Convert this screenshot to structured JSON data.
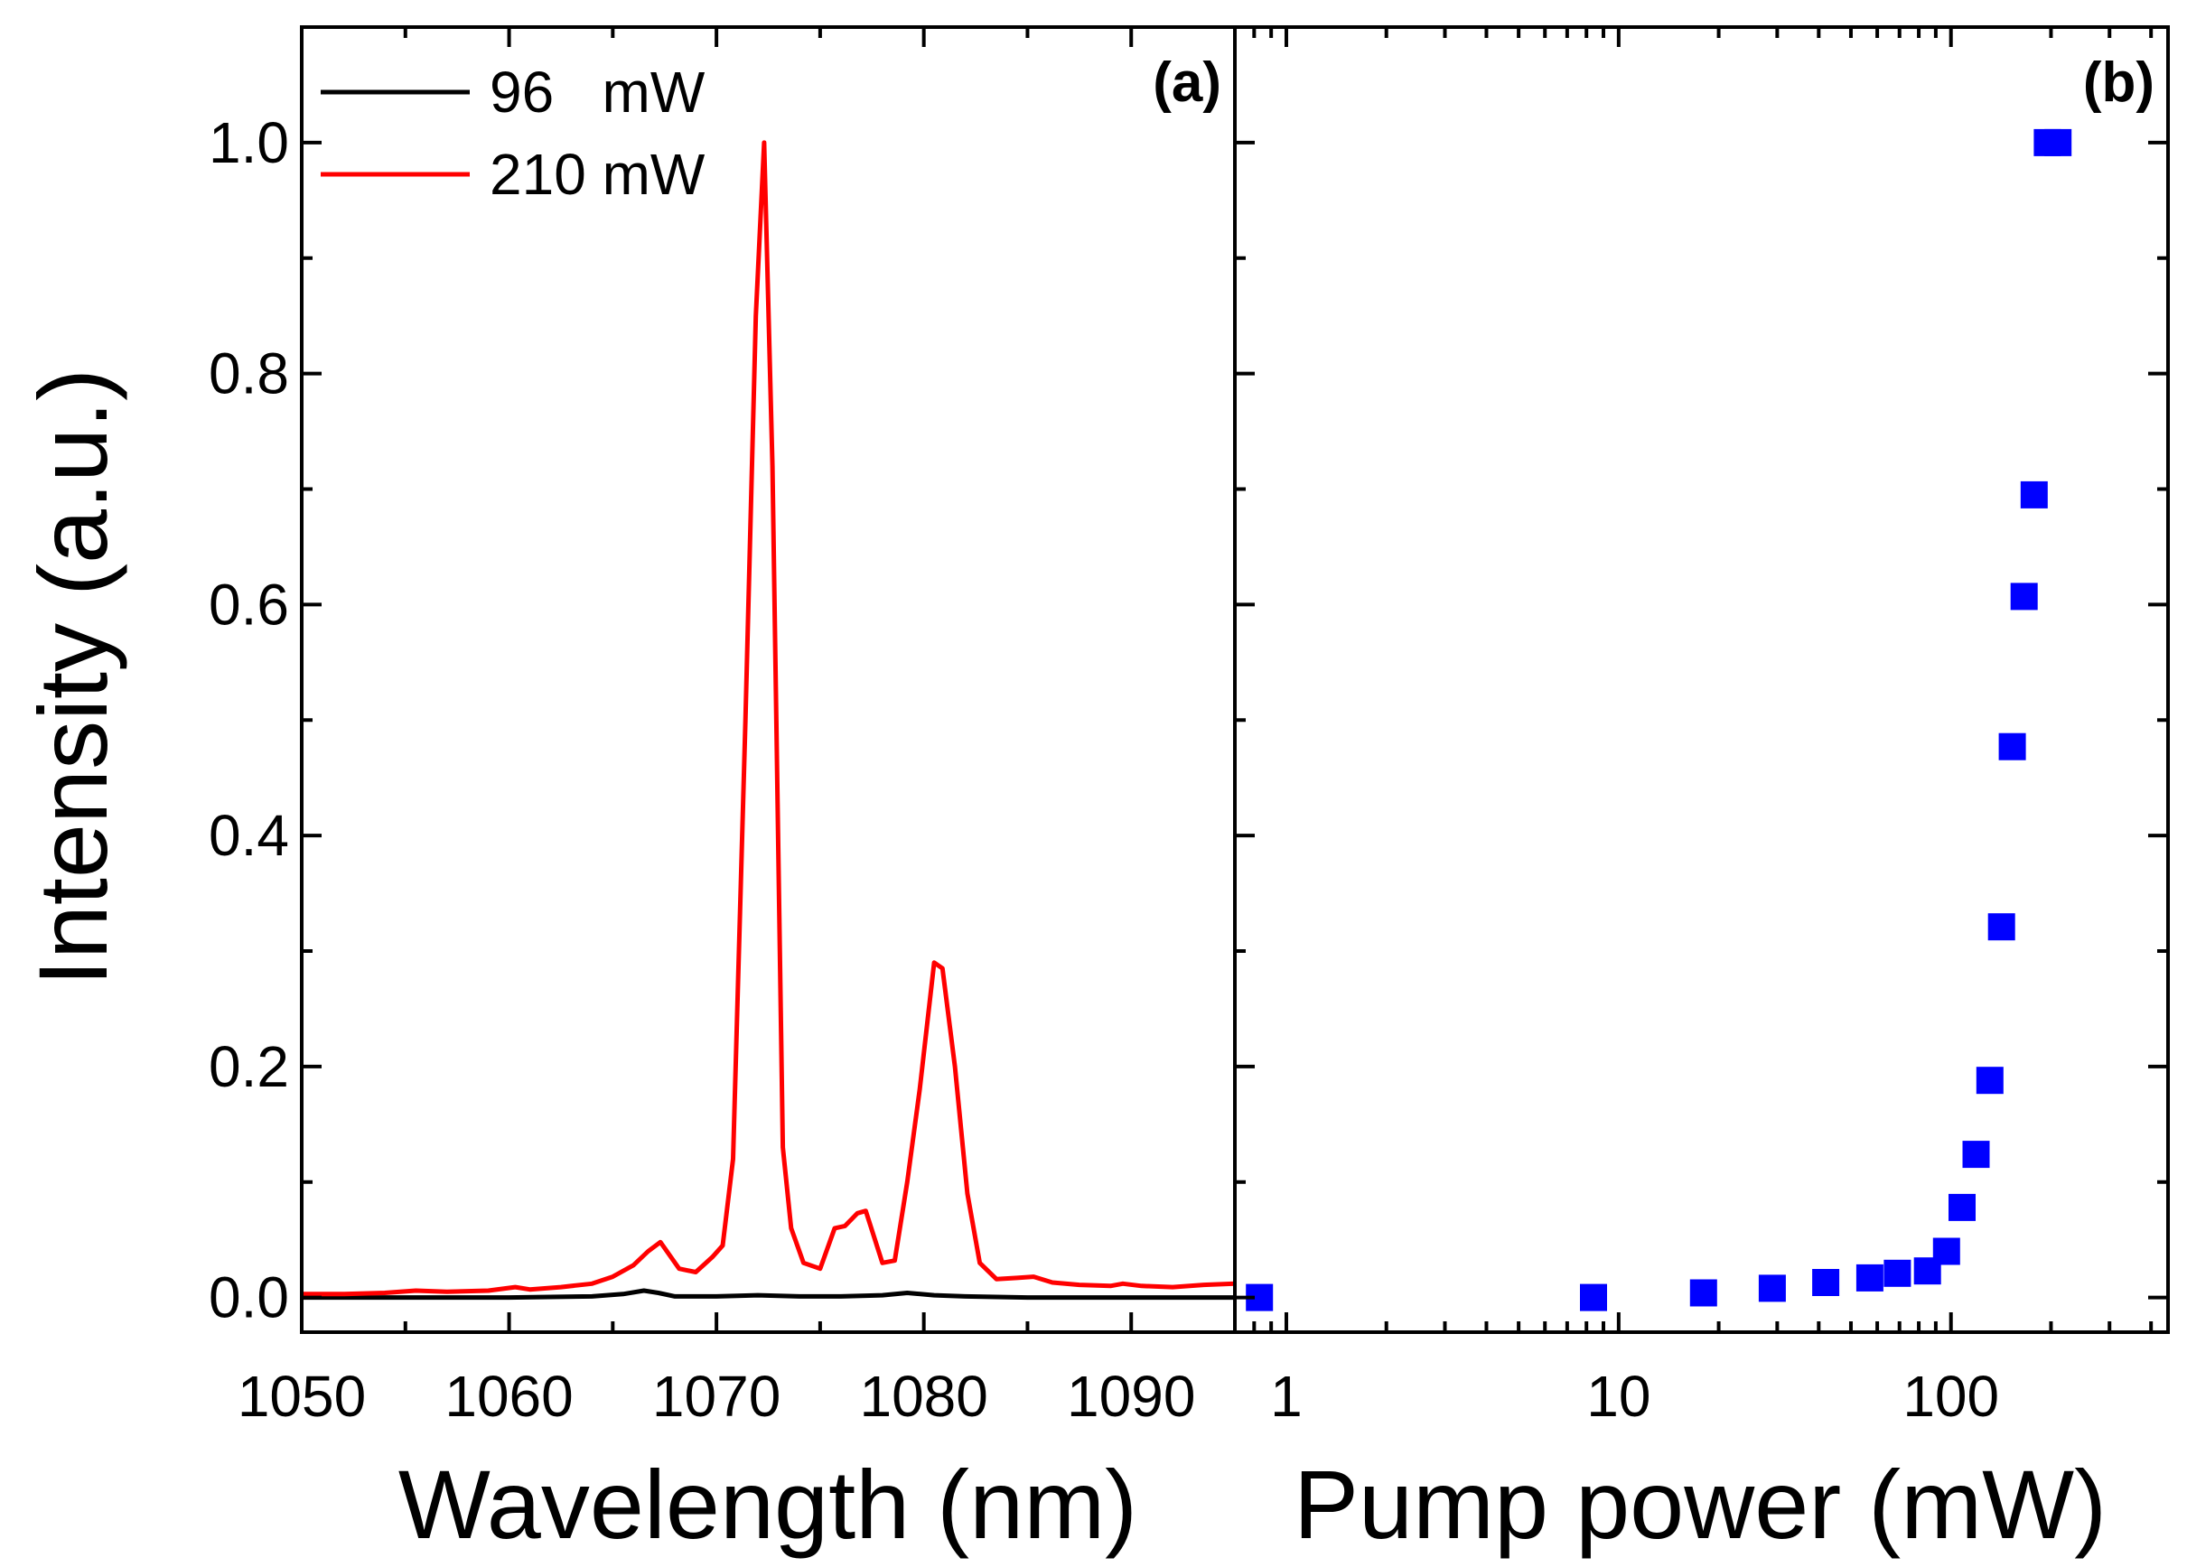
{
  "chart_data": [
    {
      "type": "line",
      "panel_label": "(a)",
      "xlabel": "Wavelength (nm)",
      "ylabel": "Intensity (a.u.)",
      "xlim": [
        1050,
        1095
      ],
      "ylim": [
        -0.03,
        1.1
      ],
      "xticks": [
        1050,
        1060,
        1070,
        1080,
        1090
      ],
      "xtick_labels": [
        "1050",
        "1060",
        "1070",
        "1080",
        "1090"
      ],
      "yticks": [
        0.0,
        0.2,
        0.4,
        0.6,
        0.8,
        1.0
      ],
      "ytick_labels": [
        "0.0",
        "0.2",
        "0.4",
        "0.6",
        "0.8",
        "1.0"
      ],
      "legend_position": "top-left",
      "series": [
        {
          "name": "96   mW",
          "color": "#000000",
          "x": [
            1050,
            1055,
            1060,
            1064,
            1065.5,
            1066.5,
            1067.2,
            1068,
            1070,
            1072,
            1074,
            1076,
            1078,
            1079.2,
            1080.5,
            1082,
            1085,
            1090,
            1095
          ],
          "y": [
            0.0,
            0.0,
            0.0,
            0.001,
            0.003,
            0.006,
            0.004,
            0.001,
            0.001,
            0.002,
            0.001,
            0.001,
            0.002,
            0.004,
            0.002,
            0.001,
            0.0,
            0.0,
            0.0
          ]
        },
        {
          "name": "210 mW",
          "color": "#ff0000",
          "x": [
            1050,
            1052,
            1054,
            1055.5,
            1057,
            1059,
            1060.3,
            1061,
            1062.5,
            1064,
            1065,
            1066,
            1066.7,
            1067.3,
            1068.2,
            1069,
            1069.8,
            1070.3,
            1070.8,
            1071.4,
            1071.9,
            1072.3,
            1072.7,
            1073.2,
            1073.6,
            1074.2,
            1075,
            1075.7,
            1076.2,
            1076.8,
            1077.2,
            1078,
            1078.6,
            1079.2,
            1079.8,
            1080.5,
            1080.9,
            1081.5,
            1082.1,
            1082.7,
            1083.5,
            1084.5,
            1085.3,
            1086.2,
            1087.5,
            1089,
            1089.6,
            1090.5,
            1092,
            1093.5,
            1095
          ],
          "y": [
            0.003,
            0.003,
            0.004,
            0.006,
            0.005,
            0.006,
            0.009,
            0.007,
            0.009,
            0.012,
            0.018,
            0.028,
            0.04,
            0.048,
            0.025,
            0.022,
            0.035,
            0.045,
            0.12,
            0.5,
            0.85,
            1.0,
            0.72,
            0.13,
            0.06,
            0.03,
            0.025,
            0.06,
            0.062,
            0.073,
            0.075,
            0.03,
            0.032,
            0.1,
            0.18,
            0.29,
            0.285,
            0.2,
            0.09,
            0.03,
            0.016,
            0.017,
            0.018,
            0.013,
            0.011,
            0.01,
            0.012,
            0.01,
            0.009,
            0.011,
            0.012
          ]
        }
      ]
    },
    {
      "type": "scatter",
      "panel_label": "(b)",
      "xlabel": "Pump power (mW)",
      "xscale": "log",
      "xlim": [
        0.7,
        450
      ],
      "ylim": [
        -0.03,
        1.1
      ],
      "xticks": [
        1,
        10,
        100
      ],
      "xtick_labels": [
        "1",
        "10",
        "100"
      ],
      "series": [
        {
          "name": "Intensity",
          "color": "#0000ff",
          "marker": "square",
          "x": [
            0.83,
            8.4,
            18,
            29,
            42,
            57,
            69,
            85,
            97,
            108,
            119,
            131,
            142,
            153,
            166,
            178,
            195,
            210
          ],
          "y": [
            0.0,
            0.0,
            0.004,
            0.008,
            0.013,
            0.017,
            0.021,
            0.023,
            0.04,
            0.078,
            0.124,
            0.188,
            0.321,
            0.477,
            0.607,
            0.695,
            1.0,
            1.0
          ]
        }
      ]
    }
  ]
}
